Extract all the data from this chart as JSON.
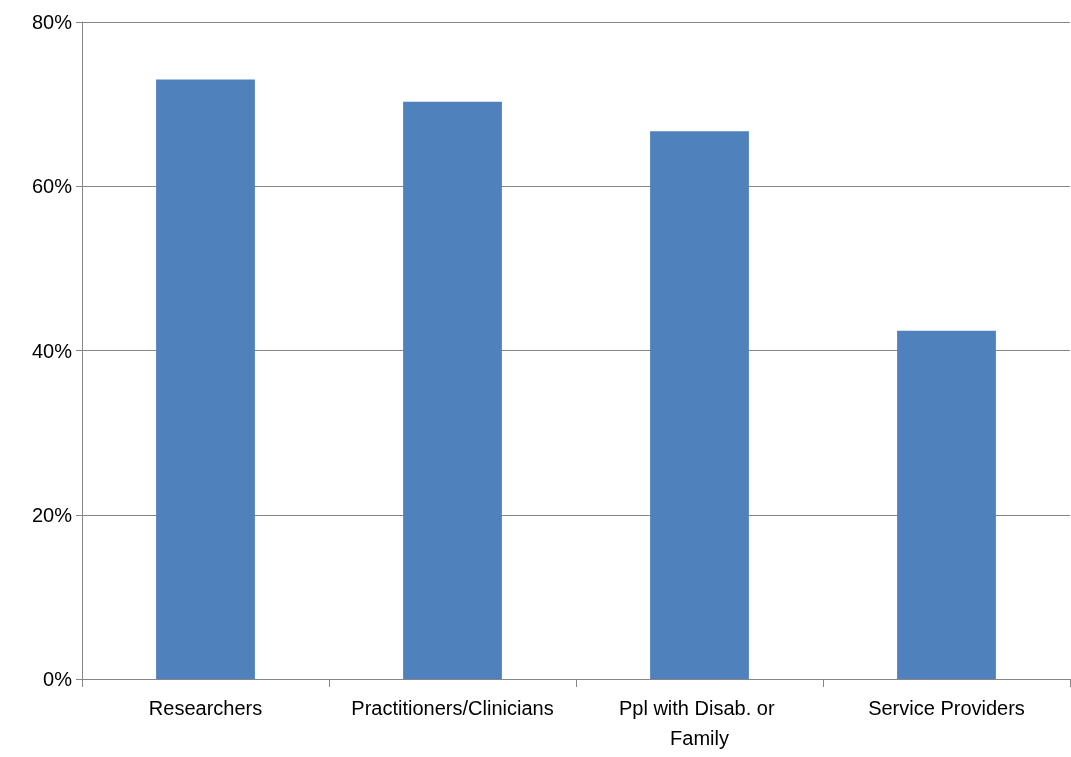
{
  "chart_data": {
    "type": "bar",
    "categories": [
      "Researchers",
      "Practitioners/Clinicians",
      "Ppl with Disab. or Family",
      "Service Providers"
    ],
    "values": [
      73,
      70.3,
      66.7,
      42.4
    ],
    "color": "#4f81bd",
    "ylim": [
      0,
      80
    ],
    "yticks": [
      {
        "value": 0,
        "label": "0%"
      },
      {
        "value": 20,
        "label": "20%"
      },
      {
        "value": 40,
        "label": "40%"
      },
      {
        "value": 60,
        "label": "60%"
      },
      {
        "value": 80,
        "label": "80%"
      }
    ],
    "grid": "y"
  }
}
